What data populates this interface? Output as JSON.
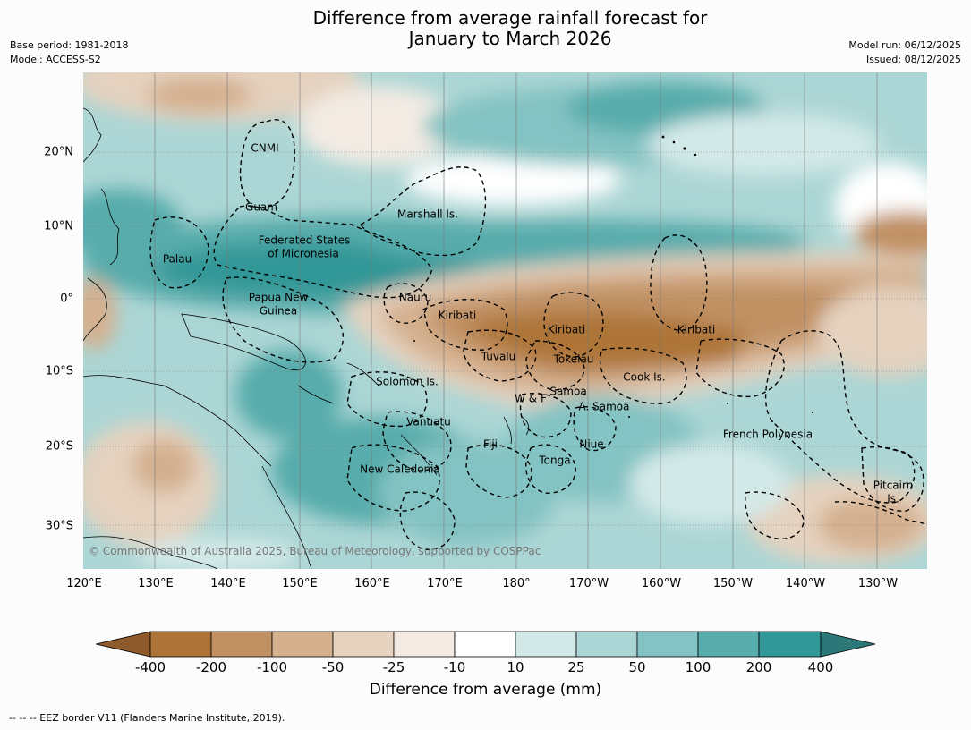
{
  "title": {
    "line1": "Difference from average rainfall forecast for",
    "line2": "January to March 2026"
  },
  "meta_left": {
    "base_period": "Base period: 1981-2018",
    "model": "Model: ACCESS-S2"
  },
  "meta_right": {
    "model_run": "Model run: 06/12/2025",
    "issued": "Issued: 08/12/2025"
  },
  "map": {
    "longitude_labels": [
      "120°E",
      "130°E",
      "140°E",
      "150°E",
      "160°E",
      "170°E",
      "180°",
      "170°W",
      "160°W",
      "150°W",
      "140°W",
      "130°W"
    ],
    "latitude_labels": [
      "20°N",
      "10°N",
      "0°",
      "10°S",
      "20°S",
      "30°S"
    ],
    "places": [
      {
        "name": "CNMI"
      },
      {
        "name": "Guam"
      },
      {
        "name": "Marshall Is."
      },
      {
        "name": "Federated States"
      },
      {
        "name": "of Micronesia"
      },
      {
        "name": "Palau"
      },
      {
        "name": "Papua New"
      },
      {
        "name": "Guinea"
      },
      {
        "name": "Nauru"
      },
      {
        "name": "Kiribati"
      },
      {
        "name": "Kiribati"
      },
      {
        "name": "Kiribati"
      },
      {
        "name": "Tuvalu"
      },
      {
        "name": "Tokelau"
      },
      {
        "name": "Cook Is."
      },
      {
        "name": "Solomon Is."
      },
      {
        "name": "W & F"
      },
      {
        "name": "Samoa"
      },
      {
        "name": "A. Samoa"
      },
      {
        "name": "Vanuatu"
      },
      {
        "name": "Fiji"
      },
      {
        "name": "Niue"
      },
      {
        "name": "Tonga"
      },
      {
        "name": "New Caledonia"
      },
      {
        "name": "French Polynesia"
      },
      {
        "name": "Pitcairn"
      },
      {
        "name": "Is."
      }
    ],
    "copyright": "© Commonwealth of Australia 2025, Bureau of Meteorology, supported by COSPPac"
  },
  "colorbar": {
    "ticks": [
      "-400",
      "-200",
      "-100",
      "-50",
      "-25",
      "-10",
      "10",
      "25",
      "50",
      "100",
      "200",
      "400"
    ],
    "colors": [
      "#8e5a2c",
      "#ad7439",
      "#c19164",
      "#d4b08f",
      "#e5d2bf",
      "#f3ebe3",
      "#ffffff",
      "#d3e9e8",
      "#acd6d5",
      "#84c3c3",
      "#59acac",
      "#329797",
      "#2c7878"
    ],
    "title": "Difference from average (mm)"
  },
  "footer": "--  --  -- EEZ border V11 (Flanders Marine Institute, 2019)."
}
